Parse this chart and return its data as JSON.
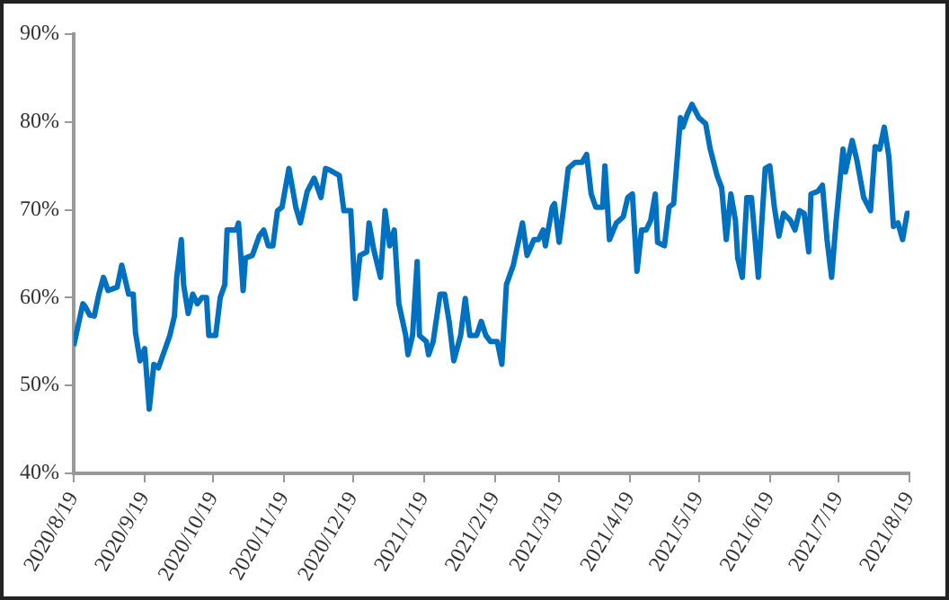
{
  "chart_data": {
    "type": "line",
    "x": [
      "2020-08-19",
      "2020-08-20",
      "2020-08-23",
      "2020-08-24",
      "2020-08-26",
      "2020-08-28",
      "2020-08-30",
      "2020-09-01",
      "2020-09-03",
      "2020-09-07",
      "2020-09-09",
      "2020-09-12",
      "2020-09-14",
      "2020-09-15",
      "2020-09-17",
      "2020-09-19",
      "2020-09-21",
      "2020-09-23",
      "2020-09-25",
      "2020-09-28",
      "2020-09-30",
      "2020-10-02",
      "2020-10-03",
      "2020-10-05",
      "2020-10-06",
      "2020-10-08",
      "2020-10-10",
      "2020-10-12",
      "2020-10-14",
      "2020-10-16",
      "2020-10-17",
      "2020-10-20",
      "2020-10-22",
      "2020-10-24",
      "2020-10-25",
      "2020-10-29",
      "2020-10-30",
      "2020-11-01",
      "2020-11-02",
      "2020-11-05",
      "2020-11-08",
      "2020-11-10",
      "2020-11-12",
      "2020-11-14",
      "2020-11-16",
      "2020-11-18",
      "2020-11-19",
      "2020-11-21",
      "2020-11-23",
      "2020-11-24",
      "2020-11-26",
      "2020-11-29",
      "2020-12-02",
      "2020-12-05",
      "2020-12-07",
      "2020-12-09",
      "2020-12-13",
      "2020-12-15",
      "2020-12-18",
      "2020-12-20",
      "2020-12-22",
      "2020-12-25",
      "2020-12-26",
      "2020-12-28",
      "2020-12-31",
      "2021-01-02",
      "2021-01-04",
      "2021-01-06",
      "2021-01-08",
      "2021-01-11",
      "2021-01-12",
      "2021-01-14",
      "2021-01-16",
      "2021-01-17",
      "2021-01-20",
      "2021-01-21",
      "2021-01-23",
      "2021-01-26",
      "2021-01-28",
      "2021-01-30",
      "2021-02-01",
      "2021-02-04",
      "2021-02-06",
      "2021-02-08",
      "2021-02-11",
      "2021-02-13",
      "2021-02-15",
      "2021-02-17",
      "2021-02-20",
      "2021-02-22",
      "2021-02-24",
      "2021-02-27",
      "2021-03-03",
      "2021-03-05",
      "2021-03-08",
      "2021-03-10",
      "2021-03-12",
      "2021-03-13",
      "2021-03-16",
      "2021-03-17",
      "2021-03-19",
      "2021-03-21",
      "2021-03-23",
      "2021-03-26",
      "2021-03-29",
      "2021-03-31",
      "2021-04-02",
      "2021-04-04",
      "2021-04-07",
      "2021-04-08",
      "2021-04-10",
      "2021-04-13",
      "2021-04-16",
      "2021-04-18",
      "2021-04-20",
      "2021-04-22",
      "2021-04-24",
      "2021-04-26",
      "2021-04-28",
      "2021-04-30",
      "2021-05-01",
      "2021-05-04",
      "2021-05-06",
      "2021-05-08",
      "2021-05-11",
      "2021-05-12",
      "2021-05-14",
      "2021-05-16",
      "2021-05-19",
      "2021-05-22",
      "2021-05-24",
      "2021-05-27",
      "2021-05-29",
      "2021-05-31",
      "2021-06-02",
      "2021-06-04",
      "2021-06-05",
      "2021-06-07",
      "2021-06-09",
      "2021-06-11",
      "2021-06-14",
      "2021-06-17",
      "2021-06-19",
      "2021-06-21",
      "2021-06-23",
      "2021-06-25",
      "2021-06-28",
      "2021-06-30",
      "2021-07-02",
      "2021-07-04",
      "2021-07-06",
      "2021-07-07",
      "2021-07-10",
      "2021-07-12",
      "2021-07-14",
      "2021-07-16",
      "2021-07-18",
      "2021-07-21",
      "2021-07-22",
      "2021-07-25",
      "2021-07-27",
      "2021-07-30",
      "2021-08-02",
      "2021-08-04",
      "2021-08-06",
      "2021-08-08",
      "2021-08-10",
      "2021-08-12",
      "2021-08-14",
      "2021-08-16",
      "2021-08-18",
      "2021-08-19"
    ],
    "series": [
      {
        "color": "#0070c0",
        "values": [
          54.5,
          55.7,
          59.3,
          59,
          58,
          57.9,
          60.4,
          62.3,
          60.8,
          61.2,
          63.7,
          60.4,
          60.4,
          56,
          52.8,
          54.2,
          47.3,
          52.4,
          52,
          54.2,
          55.7,
          57.9,
          62.3,
          66.6,
          61.5,
          58.2,
          60.4,
          59.3,
          60,
          60,
          55.7,
          55.7,
          60,
          61.5,
          67.7,
          67.7,
          68.5,
          60.8,
          64.5,
          64.8,
          67,
          67.7,
          65.9,
          65.9,
          69.9,
          70.3,
          71.8,
          74.7,
          71.8,
          70.3,
          68.5,
          72.1,
          73.6,
          71.4,
          74.7,
          74.5,
          73.9,
          69.9,
          69.9,
          59.9,
          64.8,
          65.2,
          68.5,
          65.5,
          62.3,
          69.9,
          65.9,
          67.7,
          59.3,
          55.7,
          53.5,
          55.7,
          64.1,
          55.7,
          55,
          53.5,
          55,
          60.4,
          60.4,
          57.2,
          52.8,
          55.7,
          59.9,
          55.7,
          55.7,
          57.3,
          55.7,
          55,
          55,
          52.4,
          61.5,
          63.7,
          68.5,
          64.8,
          66.6,
          66.6,
          67.7,
          65.9,
          70.3,
          70.7,
          66.3,
          70.3,
          74.7,
          75.4,
          75.4,
          76.3,
          71.8,
          70.3,
          70.3,
          75,
          66.6,
          68.5,
          69.2,
          71.4,
          71.8,
          63,
          67.7,
          67.7,
          68.8,
          71.8,
          66.3,
          65.9,
          70.3,
          70.7,
          80.5,
          79.4,
          80.9,
          82,
          80.5,
          79.8,
          76.9,
          73.9,
          72.5,
          66.6,
          71.8,
          68.8,
          64.5,
          62.3,
          71.4,
          71.4,
          62.3,
          74.7,
          75,
          70.3,
          67,
          69.6,
          68.8,
          67.7,
          69.9,
          69.6,
          65.2,
          71.8,
          72.1,
          72.8,
          66.6,
          62.3,
          68.8,
          76.9,
          74.3,
          77.9,
          75.7,
          71.4,
          69.9,
          77.2,
          76.9,
          79.4,
          76.1,
          68.1,
          68.5,
          66.6,
          69.6,
          69.6
        ]
      }
    ],
    "xlim": [
      "2020-08-19",
      "2021-08-19"
    ],
    "xticks": [
      {
        "value": "2020-08-19",
        "label": "2020/8/19"
      },
      {
        "value": "2020-09-19",
        "label": "2020/9/19"
      },
      {
        "value": "2020-10-19",
        "label": "2020/10/19"
      },
      {
        "value": "2020-11-19",
        "label": "2020/11/19"
      },
      {
        "value": "2020-12-19",
        "label": "2020/12/19"
      },
      {
        "value": "2021-01-19",
        "label": "2021/1/19"
      },
      {
        "value": "2021-02-19",
        "label": "2021/2/19"
      },
      {
        "value": "2021-03-19",
        "label": "2021/3/19"
      },
      {
        "value": "2021-04-19",
        "label": "2021/4/19"
      },
      {
        "value": "2021-05-19",
        "label": "2021/5/19"
      },
      {
        "value": "2021-06-19",
        "label": "2021/6/19"
      },
      {
        "value": "2021-07-19",
        "label": "2021/7/19"
      },
      {
        "value": "2021-08-19",
        "label": "2021/8/19"
      }
    ],
    "ylim": [
      40,
      90
    ],
    "yticks": [
      {
        "value": 40,
        "label": "40%"
      },
      {
        "value": 50,
        "label": "50%"
      },
      {
        "value": 60,
        "label": "60%"
      },
      {
        "value": 70,
        "label": "70%"
      },
      {
        "value": 80,
        "label": "80%"
      },
      {
        "value": 90,
        "label": "90%"
      }
    ],
    "grid": false,
    "legend": false,
    "marker": "none",
    "line_style": "solid"
  }
}
